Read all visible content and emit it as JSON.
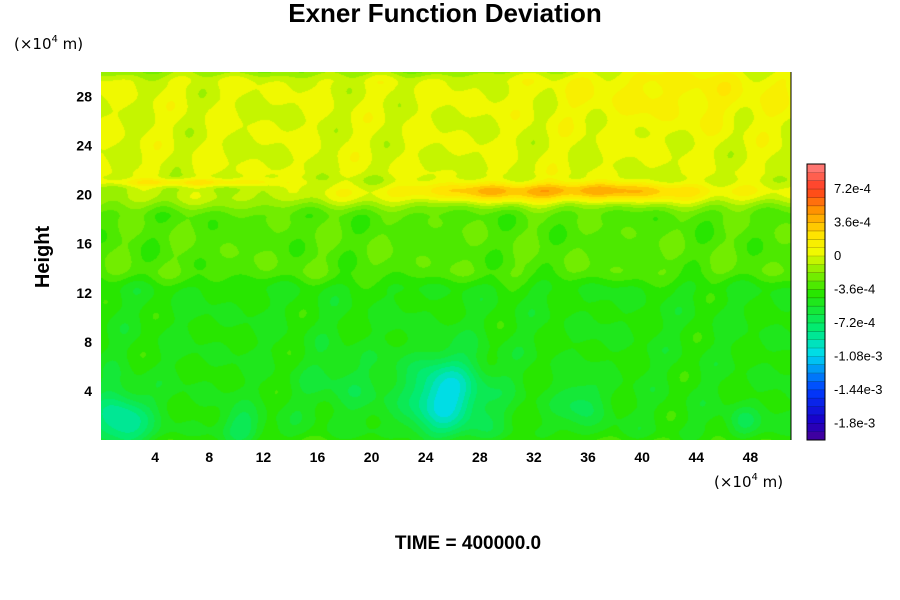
{
  "chart_data": {
    "type": "heatmap",
    "title": "Exner Function Deviation",
    "ylabel": "Height",
    "xlabel": "",
    "x_unit": {
      "prefix": "(×10",
      "exp": "4",
      "suffix": " m)"
    },
    "y_unit": {
      "prefix": "(×10",
      "exp": "4",
      "suffix": " m)"
    },
    "xlim": [
      0,
      51
    ],
    "ylim": [
      0,
      30
    ],
    "x_ticks": [
      4,
      8,
      12,
      16,
      20,
      24,
      28,
      32,
      36,
      40,
      44,
      48
    ],
    "y_ticks": [
      4,
      8,
      12,
      16,
      20,
      24,
      28
    ],
    "colorbar": {
      "min": -0.00198,
      "max": 0.00099,
      "levels": 33,
      "tick_values": [
        0.00072,
        0.00036,
        0,
        -0.00036,
        -0.00072,
        -0.00108,
        -0.00144,
        -0.0018
      ],
      "tick_labels": [
        "7.2e-4",
        "3.6e-4",
        "0",
        "-3.6e-4",
        "-7.2e-4",
        "-1.08e-3",
        "-1.44e-3",
        "-1.8e-3"
      ]
    },
    "field_features": [
      {
        "kind": "base",
        "value": -0.0003
      },
      {
        "kind": "band",
        "y_range": [
          21,
          30
        ],
        "value": 0.0
      },
      {
        "kind": "band",
        "y_range": [
          19,
          21
        ],
        "value": -8e-05
      },
      {
        "kind": "band",
        "y_range": [
          0,
          13
        ],
        "value": -0.00045
      },
      {
        "kind": "blob",
        "x": 1.5,
        "y": 1.5,
        "rx": 2.0,
        "ry": 2.5,
        "value": -0.00095
      },
      {
        "kind": "blob",
        "x": 25.5,
        "y": 3.5,
        "rx": 3.0,
        "ry": 3.2,
        "value": -0.00105
      },
      {
        "kind": "blob",
        "x": 10.5,
        "y": 1.0,
        "rx": 1.5,
        "ry": 1.5,
        "value": -0.0007
      },
      {
        "kind": "blob",
        "x": 18.0,
        "y": 4.5,
        "rx": 2.5,
        "ry": 2.5,
        "value": -0.0006
      },
      {
        "kind": "blob",
        "x": 35.5,
        "y": 3.0,
        "rx": 1.8,
        "ry": 2.0,
        "value": -0.00065
      },
      {
        "kind": "blob",
        "x": 47.5,
        "y": 1.5,
        "rx": 1.2,
        "ry": 1.2,
        "value": -0.00065
      },
      {
        "kind": "blob",
        "x": 34.0,
        "y": 20.3,
        "rx": 13.0,
        "ry": 0.8,
        "value": 0.00042
      },
      {
        "kind": "blob",
        "x": 7.0,
        "y": 21.0,
        "rx": 7.0,
        "ry": 0.35,
        "value": 0.00022
      },
      {
        "kind": "blob",
        "x": 43.0,
        "y": 28.5,
        "rx": 10.0,
        "ry": 3.0,
        "value": 0.00012
      }
    ]
  },
  "footer": {
    "label": "TIME = 400000.0"
  }
}
